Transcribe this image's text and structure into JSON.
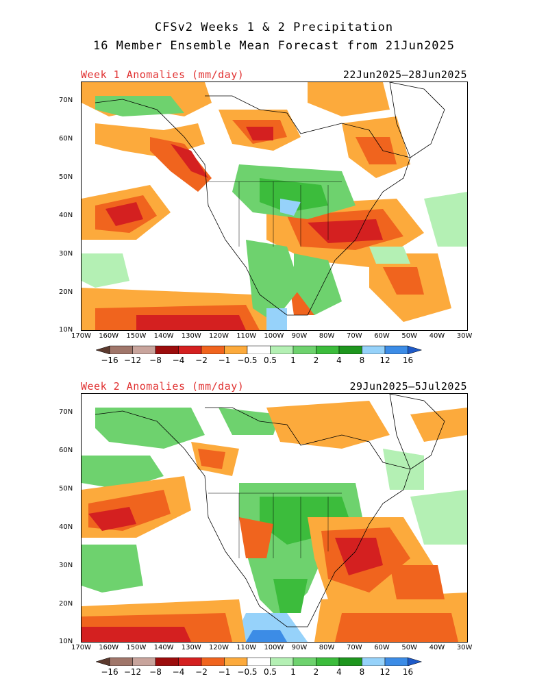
{
  "title_line1": "CFSv2 Weeks 1 & 2 Precipitation",
  "title_line2": "16 Member Ensemble Mean Forecast from 21Jun2025",
  "panels": [
    {
      "label": "Week 1 Anomalies (mm/day)",
      "dates": "22Jun2025–28Jun2025"
    },
    {
      "label": "Week 2 Anomalies (mm/day)",
      "dates": "29Jun2025–5Jul2025"
    }
  ],
  "lat_labels": [
    "70N",
    "60N",
    "50N",
    "40N",
    "30N",
    "20N",
    "10N"
  ],
  "lon_labels": [
    "170W",
    "160W",
    "150W",
    "140W",
    "130W",
    "120W",
    "110W",
    "100W",
    "90W",
    "80W",
    "70W",
    "60W",
    "50W",
    "40W",
    "30W"
  ],
  "colorbar": {
    "labels": [
      "−16",
      "−12",
      "−8",
      "−4",
      "−2",
      "−1",
      "−0.5",
      "0.5",
      "1",
      "2",
      "4",
      "8",
      "12",
      "16"
    ],
    "colors": [
      "#5c3a2e",
      "#a0766a",
      "#c8a49c",
      "#9c0d0d",
      "#d42020",
      "#f0641e",
      "#fcaa3c",
      "#ffffff",
      "#b4f0b4",
      "#6ed26e",
      "#3cbc3c",
      "#1e961e",
      "#96d2fa",
      "#3c8ce6",
      "#1e5ac8"
    ]
  }
}
